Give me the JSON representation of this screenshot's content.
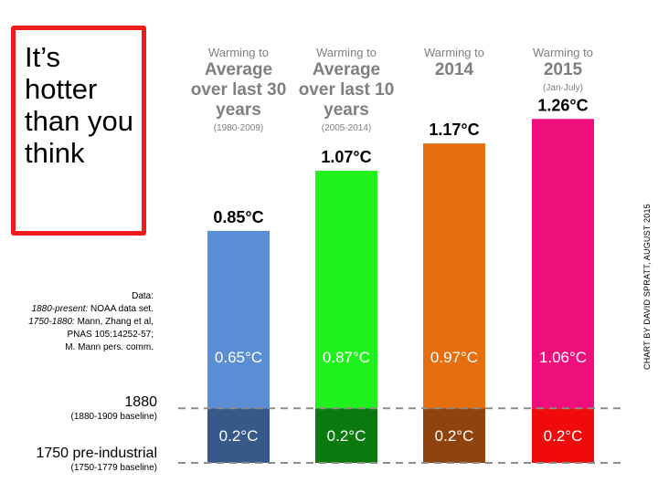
{
  "headline": "It’s\nhotter\nthan you\nthink",
  "source_note": {
    "line1": "Data:",
    "line2_italic": "1880-present:",
    "line2_rest": " NOAA data set.",
    "line3_italic": "1750-1880:",
    "line3_rest": " Mann, Zhang et al,",
    "line4": "PNAS 105:14252-57;",
    "line5": "M. Mann pers. comm."
  },
  "baselines": [
    {
      "label": "1880",
      "sublabel": "(1880-1909  baseline)"
    },
    {
      "label": "1750 pre-industrial",
      "sublabel": "(1750-1779 baseline)"
    }
  ],
  "credit": "CHART BY DAVID SPRATT, AUGUST 2015",
  "colors": {
    "border": "#ee1c1c",
    "gridline": "#8c8c8c",
    "heading": "#7f7f7f"
  },
  "chart_data": {
    "type": "bar",
    "stacked": true,
    "categories": [
      {
        "intro": "Warming to",
        "main": "Average over last 30 years",
        "range": "(1980-2009)"
      },
      {
        "intro": "Warming to",
        "main": "Average over last 10 years",
        "range": "(2005-2014)"
      },
      {
        "intro": "Warming to",
        "main": "2014",
        "range": ""
      },
      {
        "intro": "Warming to",
        "main": "2015",
        "range": "(Jan-July)"
      }
    ],
    "totals": [
      0.85,
      1.07,
      1.17,
      1.26
    ],
    "total_labels": [
      "0.85°C",
      "1.07°C",
      "1.17°C",
      "1.26°C"
    ],
    "series": [
      {
        "values": [
          0.2,
          0.2,
          0.2,
          0.2
        ],
        "labels": [
          "0.2°C",
          "0.2°C",
          "0.2°C",
          "0.2°C"
        ],
        "colors": [
          "#36598a",
          "#0b7a0e",
          "#8f4410",
          "#f00a0a"
        ]
      },
      {
        "values": [
          0.65,
          0.87,
          0.97,
          1.06
        ],
        "labels": [
          "0.65°C",
          "0.87°C",
          "0.97°C",
          "1.06°C"
        ],
        "colors": [
          "#5a8fd6",
          "#1ff21c",
          "#e66e0c",
          "#ee0f7c"
        ]
      }
    ],
    "gridlines": [
      0,
      0.2
    ],
    "grid": false,
    "legend": "none"
  }
}
